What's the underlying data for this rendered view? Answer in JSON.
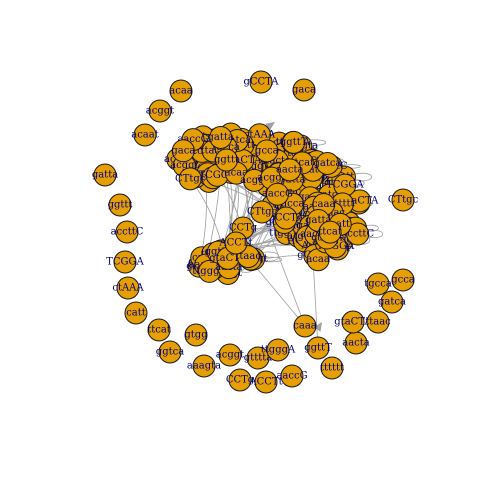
{
  "colors": {
    "node_fill": "#E69F00",
    "node_stroke": "#1A1A1A",
    "label": "#000080",
    "edge": "#A0A0A0",
    "background": "#FFFFFF"
  },
  "nodes": [
    "gCCTA",
    "gaca",
    "acaa",
    "acggt",
    "acaat",
    "gatta",
    "ggttt",
    "accttC",
    "TCGGA",
    "ctAAA",
    "catt",
    "ttcat",
    "gtgg",
    "ggtca",
    "aaagta",
    "acggt",
    "gtttta",
    "ttgggA",
    "ggttT",
    "tttttt",
    "aacta",
    "gtaCTA",
    "ttaac",
    "gatca",
    "tgcca",
    "gcca",
    "CTtgc",
    "CCTg",
    "ACCTt",
    "aaccG",
    "caaa"
  ]
}
